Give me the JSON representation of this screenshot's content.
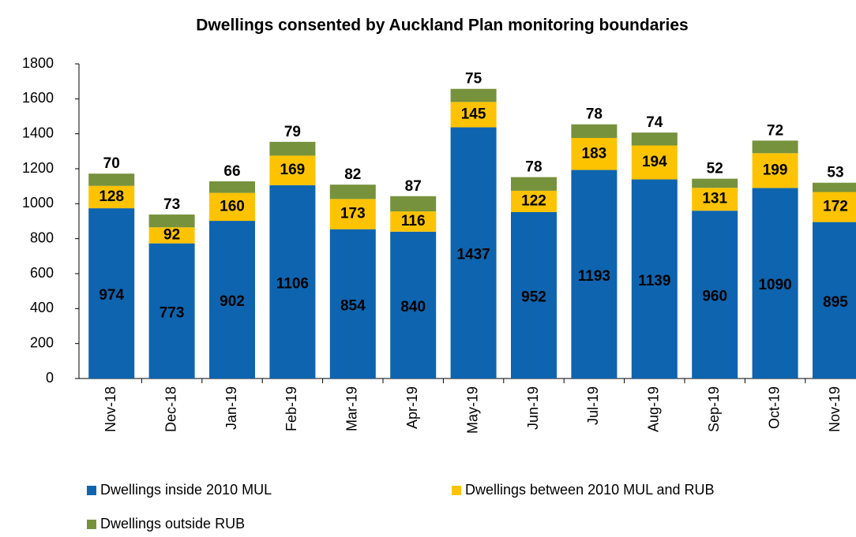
{
  "chart_data": {
    "type": "stacked_bar",
    "title": "Dwellings consented by Auckland Plan monitoring boundaries",
    "categories": [
      "Nov-18",
      "Dec-18",
      "Jan-19",
      "Feb-19",
      "Mar-19",
      "Apr-19",
      "May-19",
      "Jun-19",
      "Jul-19",
      "Aug-19",
      "Sep-19",
      "Oct-19",
      "Nov-19"
    ],
    "series": [
      {
        "name": "Dwellings inside 2010 MUL",
        "color": "#0e64ae",
        "values": [
          974,
          773,
          902,
          1106,
          854,
          840,
          1437,
          952,
          1193,
          1139,
          960,
          1090,
          895
        ]
      },
      {
        "name": "Dwellings between 2010 MUL and RUB",
        "color": "#fdc300",
        "values": [
          128,
          92,
          160,
          169,
          173,
          116,
          145,
          122,
          183,
          194,
          131,
          199,
          172
        ]
      },
      {
        "name": "Dwellings outside RUB",
        "color": "#76923c",
        "values": [
          70,
          73,
          66,
          79,
          82,
          87,
          75,
          78,
          78,
          74,
          52,
          72,
          53
        ]
      }
    ],
    "ylim": [
      0,
      1800
    ],
    "yticks": [
      0,
      200,
      400,
      600,
      800,
      1000,
      1200,
      1400,
      1600,
      1800
    ],
    "legend": "bottom",
    "grid": false
  }
}
